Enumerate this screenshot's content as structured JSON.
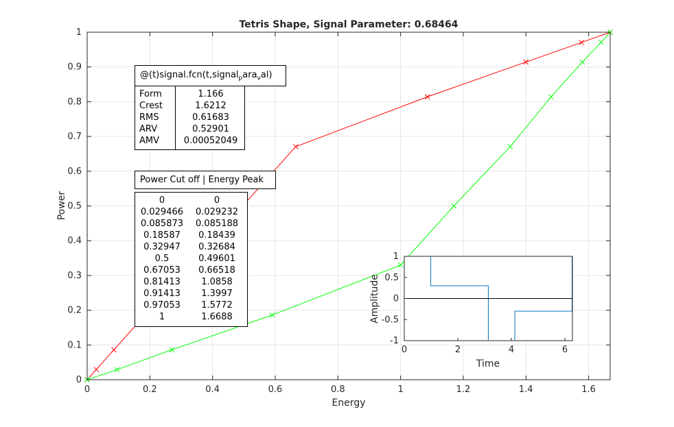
{
  "main_chart": {
    "title": "Tetris Shape, Signal Parameter: 0.68464",
    "xlabel": "Energy",
    "ylabel": "Power",
    "xlim": [
      0,
      1.6688
    ],
    "ylim": [
      0,
      1
    ],
    "xticks": [
      "0",
      "0.2",
      "0.4",
      "0.6",
      "0.8",
      "1",
      "1.2",
      "1.4",
      "1.6"
    ],
    "yticks": [
      "0",
      "0.1",
      "0.2",
      "0.3",
      "0.4",
      "0.5",
      "0.6",
      "0.7",
      "0.8",
      "0.9",
      "1"
    ],
    "grid": true
  },
  "chart_data": [
    {
      "type": "line",
      "title": "Tetris Shape, Signal Parameter: 0.68464",
      "xlabel": "Energy",
      "ylabel": "Power",
      "xlim": [
        0,
        1.6688
      ],
      "ylim": [
        0,
        1
      ],
      "grid": true,
      "series": [
        {
          "color": "#ff0000",
          "marker": "x",
          "x": [
            0,
            0.029232,
            0.085188,
            0.18439,
            0.32684,
            0.49601,
            0.66518,
            1.0858,
            1.3997,
            1.5772,
            1.6688
          ],
          "y": [
            0,
            0.029466,
            0.085873,
            0.18587,
            0.32947,
            0.5,
            0.67053,
            0.81413,
            0.91413,
            0.97053,
            1
          ]
        },
        {
          "color": "#00ff00",
          "marker": "x",
          "x": [
            0,
            0.095,
            0.27,
            0.59,
            1.0,
            1.17,
            1.35,
            1.48,
            1.58,
            1.64,
            1.6688
          ],
          "y": [
            0,
            0.029,
            0.086,
            0.186,
            0.33,
            0.5,
            0.671,
            0.814,
            0.914,
            0.971,
            1
          ]
        }
      ]
    },
    {
      "type": "line",
      "xlabel": "Time",
      "ylabel": "Amplitude",
      "xlim": [
        0,
        6.2832
      ],
      "ylim": [
        -1,
        1
      ],
      "grid": false,
      "xticks": [
        "0",
        "2",
        "4",
        "6"
      ],
      "yticks": [
        "-1",
        "-0.5",
        "0",
        "0.5",
        "1"
      ],
      "series": [
        {
          "color": "#0072bd",
          "x": [
            0,
            0.99,
            0.99,
            3.14,
            3.14,
            4.13,
            4.13,
            6.27,
            6.27
          ],
          "y": [
            1,
            1,
            0.3,
            0.3,
            -1,
            -1,
            -0.3,
            -0.3,
            1
          ]
        },
        {
          "color": "#000000",
          "x": [
            0,
            6.2832
          ],
          "y": [
            0,
            0
          ]
        }
      ]
    }
  ],
  "stats_table": {
    "header": "@(t)signal.fcn(t,signal_param_val)",
    "rows": [
      {
        "label": "Form",
        "value": "1.166"
      },
      {
        "label": "Crest",
        "value": "1.6212"
      },
      {
        "label": "RMS",
        "value": "0.61683"
      },
      {
        "label": "ARV",
        "value": "0.52901"
      },
      {
        "label": "AMV",
        "value": "0.00052049"
      }
    ]
  },
  "cutoff_table": {
    "header": "Power Cut off | Energy Peak",
    "rows": [
      [
        "0",
        "0"
      ],
      [
        "0.029466",
        "0.029232"
      ],
      [
        "0.085873",
        "0.085188"
      ],
      [
        "0.18587",
        "0.18439"
      ],
      [
        "0.32947",
        "0.32684"
      ],
      [
        "0.5",
        "0.49601"
      ],
      [
        "0.67053",
        "0.66518"
      ],
      [
        "0.81413",
        "1.0858"
      ],
      [
        "0.91413",
        "1.3997"
      ],
      [
        "0.97053",
        "1.5772"
      ],
      [
        "1",
        "1.6688"
      ]
    ]
  }
}
